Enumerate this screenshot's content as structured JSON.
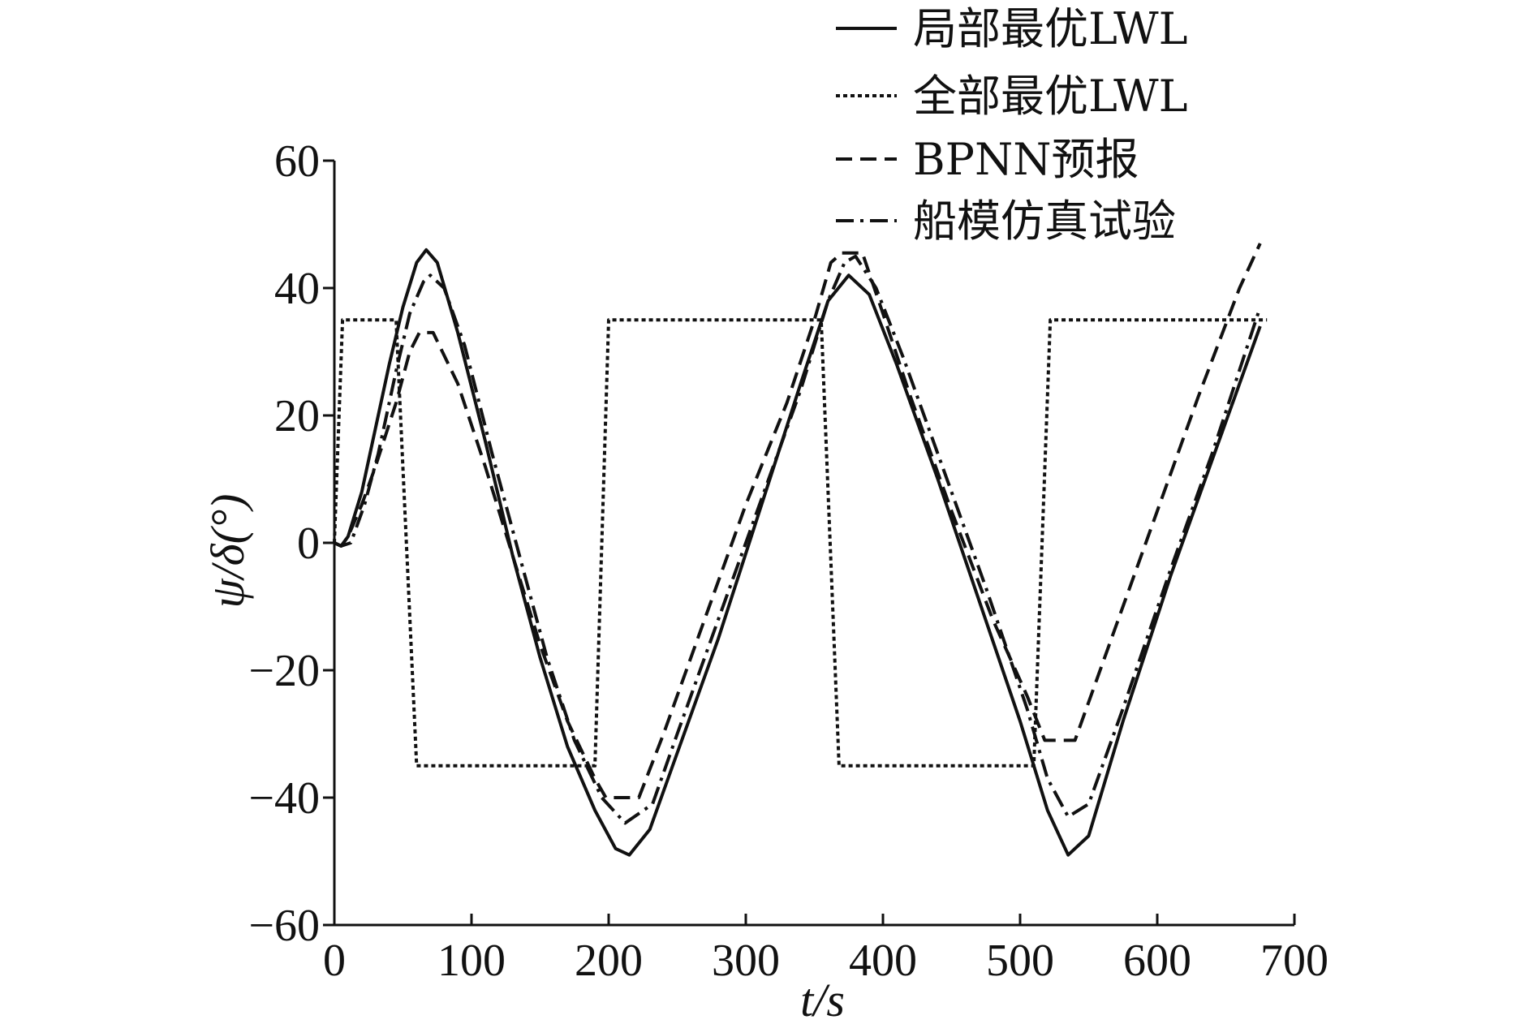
{
  "chart_data": {
    "type": "line",
    "title": "",
    "xlabel": "t/s",
    "ylabel": "ψ/δ(°)",
    "xlim": [
      0,
      700
    ],
    "ylim": [
      -60,
      60
    ],
    "xticks": [
      0,
      100,
      200,
      300,
      400,
      500,
      600,
      700
    ],
    "yticks": [
      -60,
      -40,
      -20,
      0,
      20,
      40,
      60
    ],
    "xtick_labels": [
      "0",
      "100",
      "200",
      "300",
      "400",
      "500",
      "600",
      "700"
    ],
    "ytick_labels": [
      "−60",
      "−40",
      "−20",
      "0",
      "20",
      "40",
      "60"
    ],
    "grid": false,
    "legend_position": "top-right",
    "series": [
      {
        "name": "局部最优LWL",
        "style": "solid",
        "points": [
          [
            0,
            0
          ],
          [
            5,
            -0.5
          ],
          [
            10,
            1
          ],
          [
            20,
            8
          ],
          [
            30,
            18
          ],
          [
            40,
            28
          ],
          [
            50,
            37
          ],
          [
            60,
            44
          ],
          [
            67,
            46
          ],
          [
            75,
            44
          ],
          [
            90,
            33
          ],
          [
            110,
            16
          ],
          [
            130,
            -2
          ],
          [
            150,
            -18
          ],
          [
            170,
            -32
          ],
          [
            190,
            -42
          ],
          [
            205,
            -48
          ],
          [
            215,
            -49
          ],
          [
            230,
            -45
          ],
          [
            250,
            -33
          ],
          [
            280,
            -15
          ],
          [
            310,
            5
          ],
          [
            340,
            25
          ],
          [
            360,
            38
          ],
          [
            375,
            42
          ],
          [
            390,
            39
          ],
          [
            410,
            28
          ],
          [
            440,
            10
          ],
          [
            470,
            -9
          ],
          [
            500,
            -28
          ],
          [
            520,
            -42
          ],
          [
            535,
            -49
          ],
          [
            550,
            -46
          ],
          [
            575,
            -28
          ],
          [
            610,
            -5
          ],
          [
            640,
            13
          ],
          [
            675,
            34
          ]
        ]
      },
      {
        "name": "全部最优LWL",
        "style": "dotted",
        "points": [
          [
            0,
            0
          ],
          [
            6,
            35
          ],
          [
            45,
            35
          ],
          [
            60,
            -35
          ],
          [
            190,
            -35
          ],
          [
            200,
            35
          ],
          [
            355,
            35
          ],
          [
            368,
            -35
          ],
          [
            510,
            -35
          ],
          [
            522,
            35
          ],
          [
            680,
            35
          ]
        ]
      },
      {
        "name": "BPNN预报",
        "style": "dashed",
        "points": [
          [
            0,
            0
          ],
          [
            5,
            -0.5
          ],
          [
            10,
            1
          ],
          [
            20,
            6
          ],
          [
            30,
            12
          ],
          [
            45,
            22
          ],
          [
            55,
            30
          ],
          [
            62,
            33
          ],
          [
            72,
            33
          ],
          [
            90,
            25
          ],
          [
            110,
            12
          ],
          [
            130,
            -2
          ],
          [
            150,
            -16
          ],
          [
            170,
            -28
          ],
          [
            190,
            -37
          ],
          [
            198,
            -40
          ],
          [
            222,
            -40
          ],
          [
            240,
            -30
          ],
          [
            270,
            -12
          ],
          [
            300,
            6
          ],
          [
            330,
            22
          ],
          [
            350,
            35
          ],
          [
            362,
            44
          ],
          [
            370,
            45.5
          ],
          [
            385,
            45.5
          ],
          [
            400,
            36
          ],
          [
            420,
            23
          ],
          [
            450,
            5
          ],
          [
            480,
            -12
          ],
          [
            505,
            -24
          ],
          [
            518,
            -31
          ],
          [
            540,
            -31
          ],
          [
            570,
            -13
          ],
          [
            600,
            5
          ],
          [
            630,
            23
          ],
          [
            660,
            40
          ],
          [
            675,
            47
          ]
        ]
      },
      {
        "name": "船模仿真试验",
        "style": "dashdot",
        "points": [
          [
            0,
            0
          ],
          [
            5,
            -0.5
          ],
          [
            12,
            0
          ],
          [
            22,
            6
          ],
          [
            32,
            14
          ],
          [
            45,
            27
          ],
          [
            55,
            36
          ],
          [
            65,
            41
          ],
          [
            70,
            42
          ],
          [
            80,
            40
          ],
          [
            95,
            31
          ],
          [
            115,
            14
          ],
          [
            135,
            -2
          ],
          [
            155,
            -18
          ],
          [
            175,
            -31
          ],
          [
            195,
            -40
          ],
          [
            212,
            -44
          ],
          [
            232,
            -41
          ],
          [
            250,
            -30
          ],
          [
            280,
            -12
          ],
          [
            310,
            6
          ],
          [
            340,
            24
          ],
          [
            360,
            38
          ],
          [
            372,
            44
          ],
          [
            380,
            45
          ],
          [
            395,
            40
          ],
          [
            415,
            29
          ],
          [
            445,
            11
          ],
          [
            475,
            -7
          ],
          [
            505,
            -26
          ],
          [
            520,
            -37
          ],
          [
            535,
            -43
          ],
          [
            550,
            -41
          ],
          [
            575,
            -26
          ],
          [
            610,
            -4
          ],
          [
            640,
            14
          ],
          [
            675,
            37
          ]
        ]
      }
    ]
  }
}
